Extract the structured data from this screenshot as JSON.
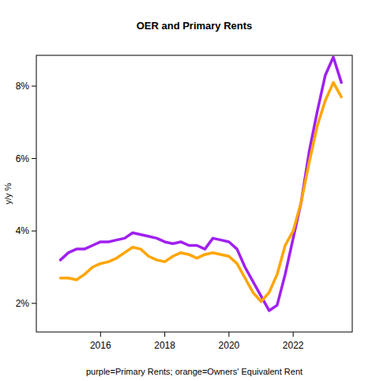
{
  "chart_data": {
    "type": "line",
    "title": "OER and Primary Rents",
    "ylabel": "y/y %",
    "xlabel": "purple=Primary Rents; orange=Owners' Equivalent Rent",
    "x": [
      2014.75,
      2015.0,
      2015.25,
      2015.5,
      2015.75,
      2016.0,
      2016.25,
      2016.5,
      2016.75,
      2017.0,
      2017.25,
      2017.5,
      2017.75,
      2018.0,
      2018.25,
      2018.5,
      2018.75,
      2019.0,
      2019.25,
      2019.5,
      2019.75,
      2020.0,
      2020.25,
      2020.5,
      2020.75,
      2021.0,
      2021.25,
      2021.5,
      2021.75,
      2022.0,
      2022.25,
      2022.5,
      2022.75,
      2023.0,
      2023.25,
      2023.5
    ],
    "series": [
      {
        "color": "#a020f0",
        "values": [
          3.2,
          3.4,
          3.5,
          3.5,
          3.6,
          3.7,
          3.7,
          3.75,
          3.8,
          3.95,
          3.9,
          3.85,
          3.8,
          3.7,
          3.65,
          3.7,
          3.6,
          3.6,
          3.5,
          3.8,
          3.75,
          3.7,
          3.5,
          3.0,
          2.6,
          2.2,
          1.8,
          1.95,
          2.8,
          3.8,
          4.8,
          6.2,
          7.3,
          8.3,
          8.8,
          8.1
        ]
      },
      {
        "color": "#ffa500",
        "values": [
          2.7,
          2.7,
          2.65,
          2.8,
          3.0,
          3.1,
          3.15,
          3.25,
          3.4,
          3.55,
          3.5,
          3.3,
          3.2,
          3.15,
          3.3,
          3.4,
          3.35,
          3.25,
          3.35,
          3.4,
          3.35,
          3.3,
          3.1,
          2.7,
          2.3,
          2.05,
          2.3,
          2.8,
          3.6,
          4.0,
          4.8,
          5.9,
          6.9,
          7.6,
          8.1,
          7.7
        ]
      }
    ],
    "xlim": [
      2014.0,
      2023.84
    ],
    "ylim": [
      1.21,
      8.85
    ],
    "xticks": [
      2016,
      2018,
      2020,
      2022
    ],
    "yticks": [
      {
        "value": 2,
        "label": "2%"
      },
      {
        "value": 4,
        "label": "4%"
      },
      {
        "value": 6,
        "label": "6%"
      },
      {
        "value": 8,
        "label": "8%"
      }
    ],
    "grid": false
  }
}
